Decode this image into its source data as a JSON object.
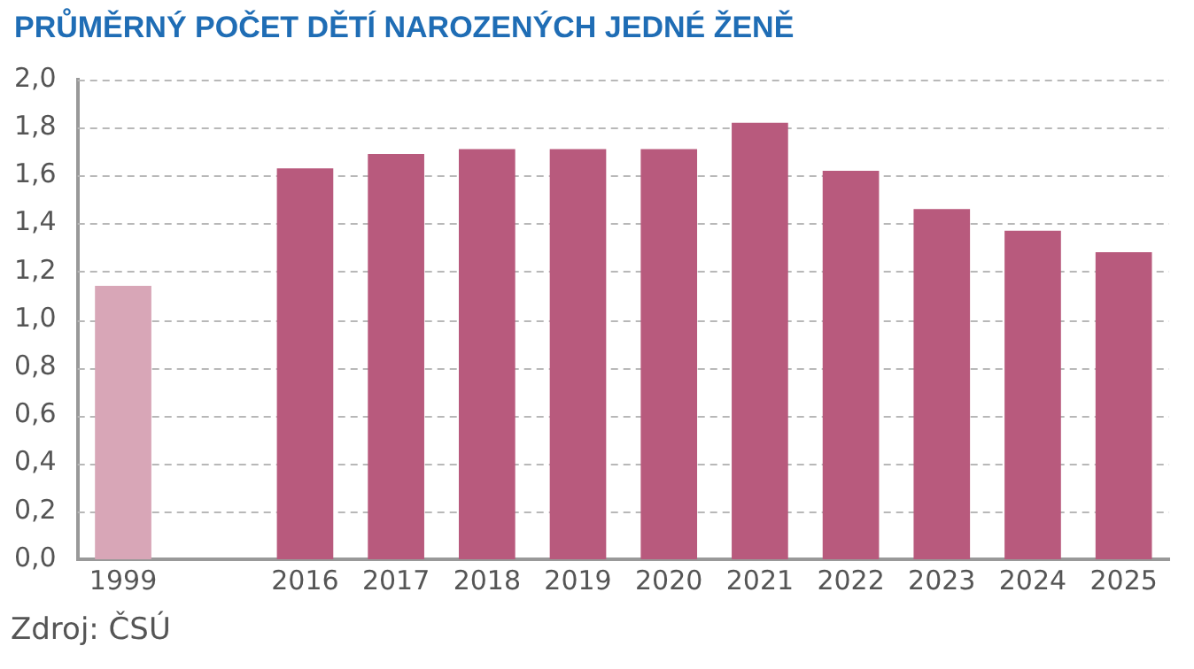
{
  "chart_data": {
    "type": "bar",
    "title": "PRŮMĚRNÝ POČET DĚTÍ NAROZENÝCH JEDNÉ ŽENĚ",
    "categories": [
      "1999",
      null,
      "2016",
      "2017",
      "2018",
      "2019",
      "2020",
      "2021",
      "2022",
      "2023",
      "2024",
      "2025"
    ],
    "values": [
      1.14,
      null,
      1.63,
      1.69,
      1.71,
      1.71,
      1.71,
      1.82,
      1.62,
      1.46,
      1.37,
      1.28
    ],
    "colors": [
      "#d8a6b7",
      "#b85a7d",
      "#b85a7d",
      "#b85a7d",
      "#b85a7d",
      "#b85a7d",
      "#b85a7d",
      "#b85a7d",
      "#b85a7d",
      "#b85a7d",
      "#b85a7d",
      "#b85a7d"
    ],
    "ylim": [
      0,
      2
    ],
    "yticks": [
      {
        "value": 0,
        "label": "0,0"
      },
      {
        "value": 0.2,
        "label": "0,2"
      },
      {
        "value": 0.4,
        "label": "0,4"
      },
      {
        "value": 0.6,
        "label": "0,6"
      },
      {
        "value": 0.8,
        "label": "0,8"
      },
      {
        "value": 1,
        "label": "1,0"
      },
      {
        "value": 1.2,
        "label": "1,2"
      },
      {
        "value": 1.4,
        "label": "1,4"
      },
      {
        "value": 1.6,
        "label": "1,6"
      },
      {
        "value": 1.8,
        "label": "1,8"
      },
      {
        "value": 2,
        "label": "2,0"
      }
    ],
    "grid": "y",
    "legend": false,
    "annotations": [
      "Zdroj: ČSÚ"
    ]
  }
}
